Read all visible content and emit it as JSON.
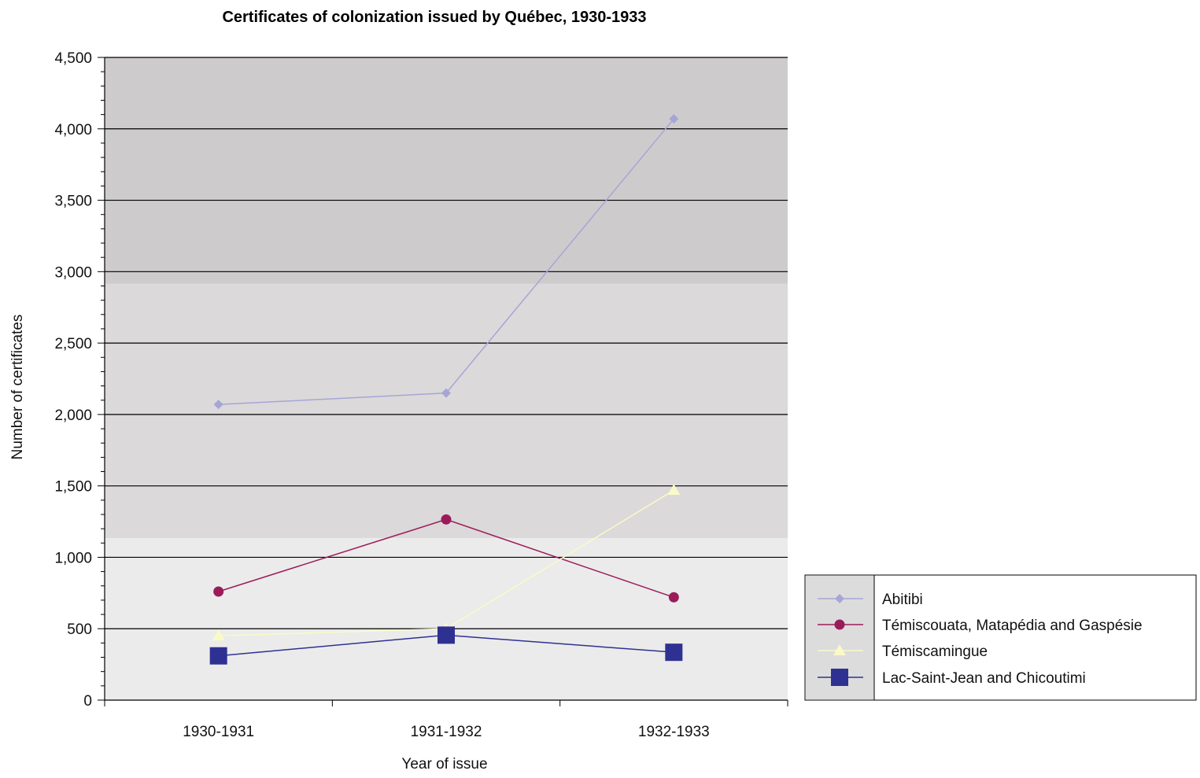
{
  "chart_data": {
    "type": "line",
    "title": "Certificates of colonization issued by Québec, 1930-1933",
    "xlabel": "Year of issue",
    "ylabel": "Number of certificates",
    "categories": [
      "1930-1931",
      "1931-1932",
      "1932-1933"
    ],
    "ylim": [
      0,
      4500
    ],
    "yticks": [
      0,
      500,
      1000,
      1500,
      2000,
      2500,
      3000,
      3500,
      4000,
      4500
    ],
    "ytick_labels": [
      "0",
      "500",
      "1,000",
      "1,500",
      "2,000",
      "2,500",
      "3,000",
      "3,500",
      "4,000",
      "4,500"
    ],
    "grid": true,
    "legend_position": "right",
    "series": [
      {
        "name": "Abitibi",
        "values": [
          2070,
          2150,
          4070
        ],
        "color": "#a6a6d6",
        "marker": "diamond"
      },
      {
        "name": "Témiscouata, Matapédia and Gaspésie",
        "values": [
          760,
          1265,
          720
        ],
        "color": "#9b1b5a",
        "marker": "circle"
      },
      {
        "name": "Témiscamingue",
        "values": [
          450,
          500,
          1470
        ],
        "color": "#fafac8",
        "marker": "triangle"
      },
      {
        "name": "Lac-Saint-Jean and Chicoutimi",
        "values": [
          310,
          455,
          335
        ],
        "color": "#2e3192",
        "marker": "square"
      }
    ],
    "background_bands": [
      {
        "from": 0,
        "to": 1135,
        "color": "#ebebeb"
      },
      {
        "from": 1135,
        "to": 2915,
        "color": "#dbd9da"
      },
      {
        "from": 2915,
        "to": 4500,
        "color": "#cdcbcc"
      }
    ]
  }
}
